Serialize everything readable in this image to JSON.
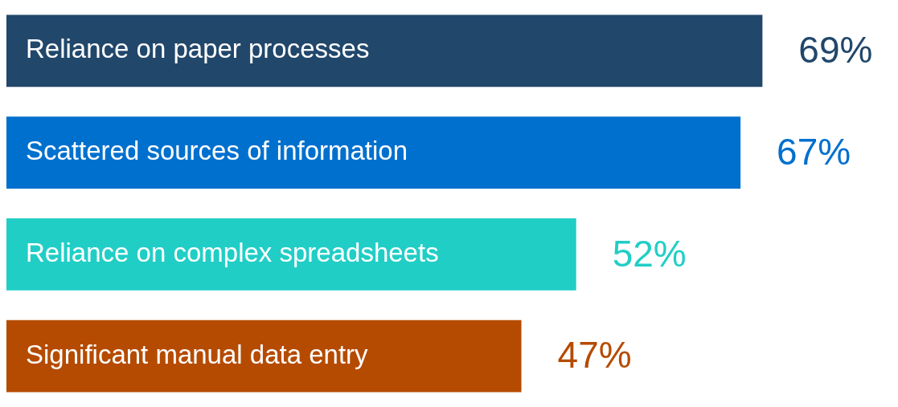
{
  "chart_data": {
    "type": "bar",
    "orientation": "horizontal",
    "categories": [
      "Reliance on paper processes",
      "Scattered sources of information",
      "Reliance on complex spreadsheets",
      "Significant manual data entry"
    ],
    "values": [
      69,
      67,
      52,
      47
    ],
    "colors": [
      "#21476b",
      "#0070ce",
      "#20cec6",
      "#b54b00"
    ],
    "value_labels": [
      "69%",
      "67%",
      "52%",
      "47%"
    ],
    "legend": false
  }
}
